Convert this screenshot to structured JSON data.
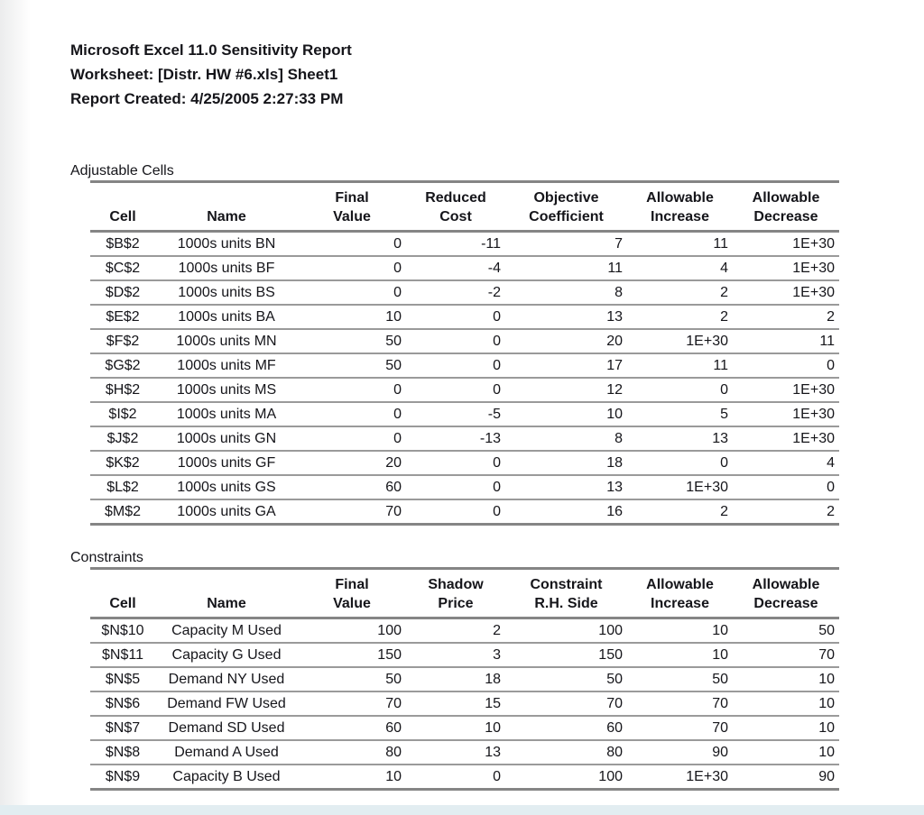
{
  "report_header": {
    "title": "Microsoft Excel 11.0 Sensitivity Report",
    "worksheet": "Worksheet: [Distr. HW #6.xls] Sheet1",
    "created": "Report Created: 4/25/2005 2:27:33 PM"
  },
  "adjustable_cells": {
    "section_title": "Adjustable Cells",
    "headers": [
      "Cell",
      "Name",
      "Final\nValue",
      "Reduced\nCost",
      "Objective\nCoefficient",
      "Allowable\nIncrease",
      "Allowable\nDecrease"
    ],
    "rows": [
      {
        "cell": "$B$2",
        "name": "1000s units BN",
        "final_value": "0",
        "reduced_cost": "-11",
        "objective_coefficient": "7",
        "allowable_increase": "11",
        "allowable_decrease": "1E+30"
      },
      {
        "cell": "$C$2",
        "name": "1000s units BF",
        "final_value": "0",
        "reduced_cost": "-4",
        "objective_coefficient": "11",
        "allowable_increase": "4",
        "allowable_decrease": "1E+30"
      },
      {
        "cell": "$D$2",
        "name": "1000s units BS",
        "final_value": "0",
        "reduced_cost": "-2",
        "objective_coefficient": "8",
        "allowable_increase": "2",
        "allowable_decrease": "1E+30"
      },
      {
        "cell": "$E$2",
        "name": "1000s units BA",
        "final_value": "10",
        "reduced_cost": "0",
        "objective_coefficient": "13",
        "allowable_increase": "2",
        "allowable_decrease": "2"
      },
      {
        "cell": "$F$2",
        "name": "1000s units MN",
        "final_value": "50",
        "reduced_cost": "0",
        "objective_coefficient": "20",
        "allowable_increase": "1E+30",
        "allowable_decrease": "11"
      },
      {
        "cell": "$G$2",
        "name": "1000s units MF",
        "final_value": "50",
        "reduced_cost": "0",
        "objective_coefficient": "17",
        "allowable_increase": "11",
        "allowable_decrease": "0"
      },
      {
        "cell": "$H$2",
        "name": "1000s units MS",
        "final_value": "0",
        "reduced_cost": "0",
        "objective_coefficient": "12",
        "allowable_increase": "0",
        "allowable_decrease": "1E+30"
      },
      {
        "cell": "$I$2",
        "name": "1000s units MA",
        "final_value": "0",
        "reduced_cost": "-5",
        "objective_coefficient": "10",
        "allowable_increase": "5",
        "allowable_decrease": "1E+30"
      },
      {
        "cell": "$J$2",
        "name": "1000s units GN",
        "final_value": "0",
        "reduced_cost": "-13",
        "objective_coefficient": "8",
        "allowable_increase": "13",
        "allowable_decrease": "1E+30"
      },
      {
        "cell": "$K$2",
        "name": "1000s units GF",
        "final_value": "20",
        "reduced_cost": "0",
        "objective_coefficient": "18",
        "allowable_increase": "0",
        "allowable_decrease": "4"
      },
      {
        "cell": "$L$2",
        "name": "1000s units GS",
        "final_value": "60",
        "reduced_cost": "0",
        "objective_coefficient": "13",
        "allowable_increase": "1E+30",
        "allowable_decrease": "0"
      },
      {
        "cell": "$M$2",
        "name": "1000s units GA",
        "final_value": "70",
        "reduced_cost": "0",
        "objective_coefficient": "16",
        "allowable_increase": "2",
        "allowable_decrease": "2"
      }
    ]
  },
  "constraints": {
    "section_title": "Constraints",
    "headers": [
      "Cell",
      "Name",
      "Final\nValue",
      "Shadow\nPrice",
      "Constraint\nR.H. Side",
      "Allowable\nIncrease",
      "Allowable\nDecrease"
    ],
    "rows": [
      {
        "cell": "$N$10",
        "name": "Capacity M Used",
        "final_value": "100",
        "shadow_price": "2",
        "constraint_rhs": "100",
        "allowable_increase": "10",
        "allowable_decrease": "50"
      },
      {
        "cell": "$N$11",
        "name": "Capacity G Used",
        "final_value": "150",
        "shadow_price": "3",
        "constraint_rhs": "150",
        "allowable_increase": "10",
        "allowable_decrease": "70"
      },
      {
        "cell": "$N$5",
        "name": "Demand NY Used",
        "final_value": "50",
        "shadow_price": "18",
        "constraint_rhs": "50",
        "allowable_increase": "50",
        "allowable_decrease": "10"
      },
      {
        "cell": "$N$6",
        "name": "Demand FW Used",
        "final_value": "70",
        "shadow_price": "15",
        "constraint_rhs": "70",
        "allowable_increase": "70",
        "allowable_decrease": "10"
      },
      {
        "cell": "$N$7",
        "name": "Demand SD Used",
        "final_value": "60",
        "shadow_price": "10",
        "constraint_rhs": "60",
        "allowable_increase": "70",
        "allowable_decrease": "10"
      },
      {
        "cell": "$N$8",
        "name": "Demand A Used",
        "final_value": "80",
        "shadow_price": "13",
        "constraint_rhs": "80",
        "allowable_increase": "90",
        "allowable_decrease": "10"
      },
      {
        "cell": "$N$9",
        "name": "Capacity B Used",
        "final_value": "10",
        "shadow_price": "0",
        "constraint_rhs": "100",
        "allowable_increase": "1E+30",
        "allowable_decrease": "90"
      }
    ]
  },
  "colors": {
    "text": "#15151a",
    "line_thick": "#858585",
    "line_thin": "#9a9a9a",
    "bottom_strip": "#e2edf1"
  }
}
